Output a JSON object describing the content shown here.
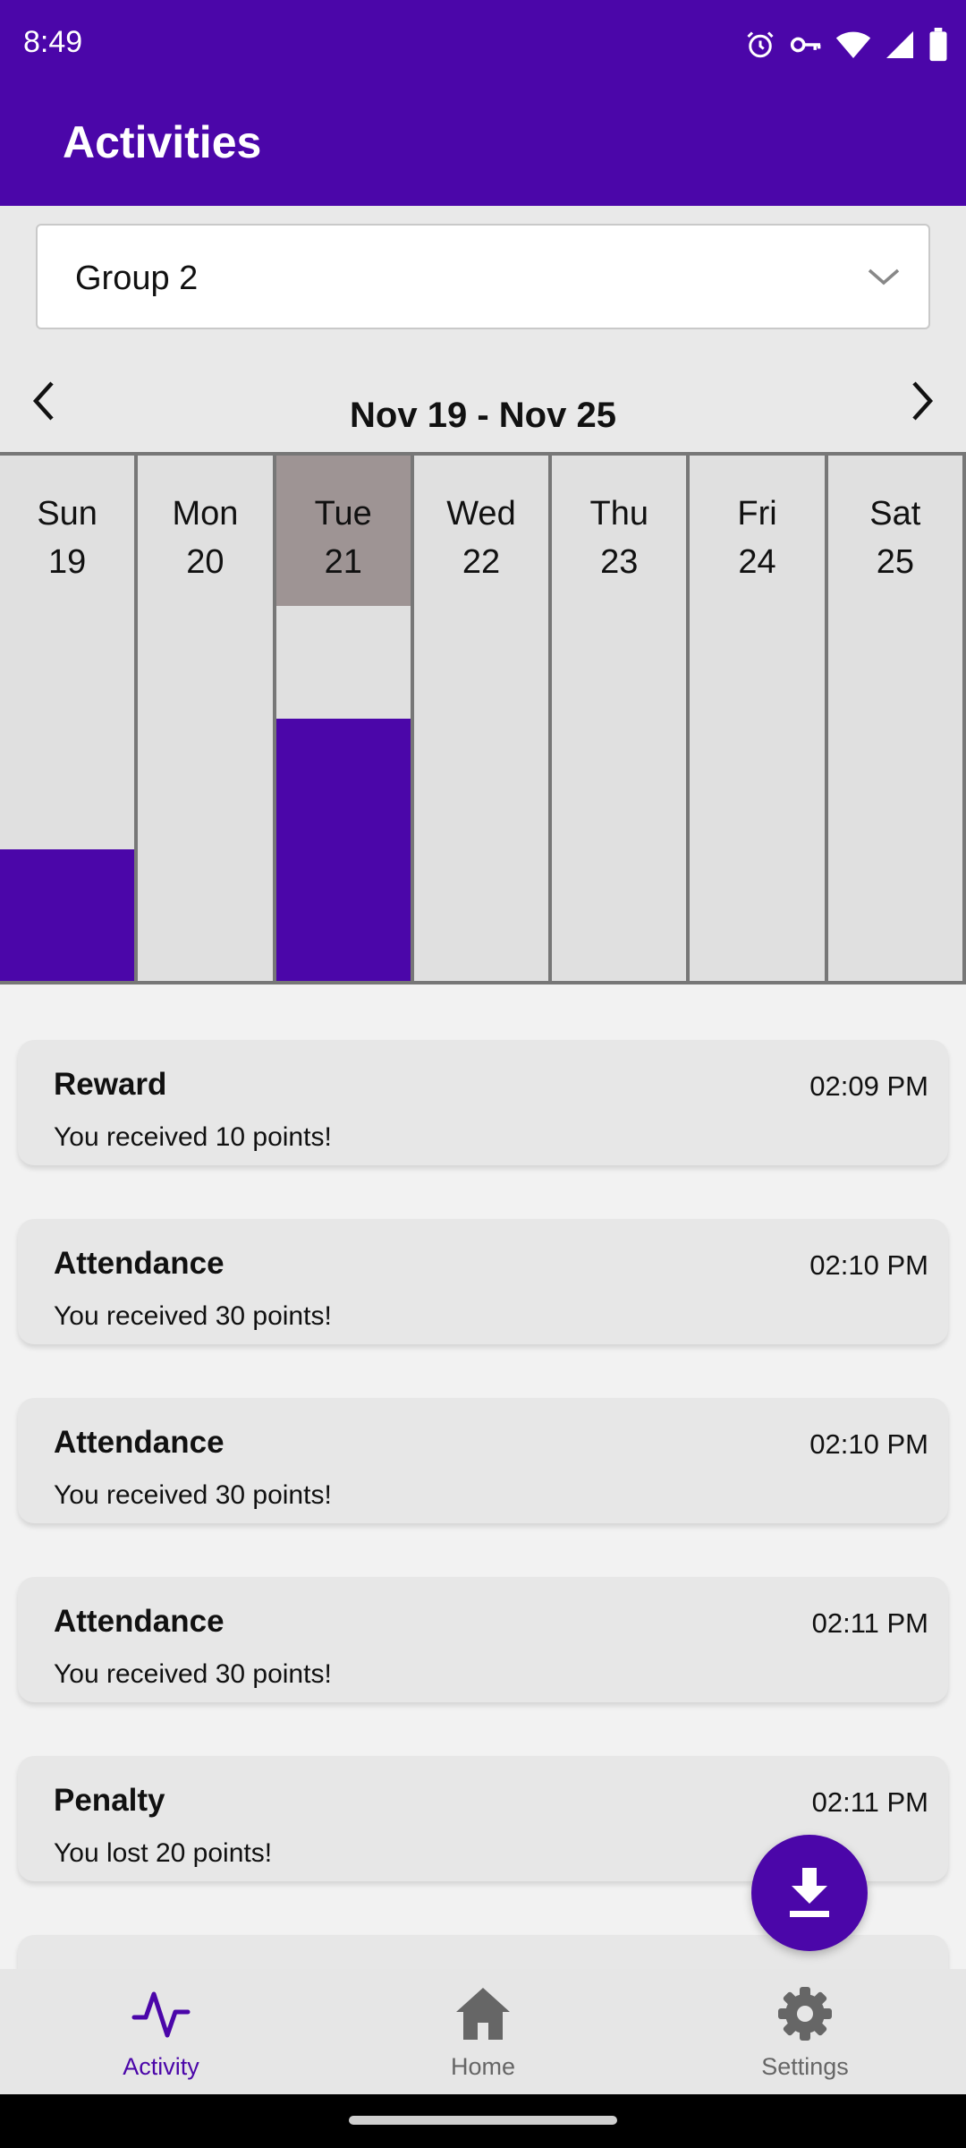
{
  "status_bar": {
    "time": "8:49",
    "icons": [
      "alarm-icon",
      "vpn-key-icon",
      "wifi-icon",
      "signal-icon",
      "battery-icon"
    ]
  },
  "header": {
    "title": "Activities"
  },
  "group_select": {
    "value": "Group 2"
  },
  "week_nav": {
    "range_label": "Nov 19 - Nov 25"
  },
  "week_days": [
    {
      "name": "Sun",
      "date": "19",
      "selected": false,
      "level": 0.25
    },
    {
      "name": "Mon",
      "date": "20",
      "selected": false,
      "level": 0
    },
    {
      "name": "Tue",
      "date": "21",
      "selected": true,
      "level": 0.5
    },
    {
      "name": "Wed",
      "date": "22",
      "selected": false,
      "level": 0
    },
    {
      "name": "Thu",
      "date": "23",
      "selected": false,
      "level": 0
    },
    {
      "name": "Fri",
      "date": "24",
      "selected": false,
      "level": 0
    },
    {
      "name": "Sat",
      "date": "25",
      "selected": false,
      "level": 0
    }
  ],
  "activities": [
    {
      "title": "Reward",
      "time": "02:09 PM",
      "message": "You received 10 points!"
    },
    {
      "title": "Attendance",
      "time": "02:10 PM",
      "message": "You received 30 points!"
    },
    {
      "title": "Attendance",
      "time": "02:10 PM",
      "message": "You received 30 points!"
    },
    {
      "title": "Attendance",
      "time": "02:11 PM",
      "message": "You received 30 points!"
    },
    {
      "title": "Penalty",
      "time": "02:11 PM",
      "message": "You lost 20 points!"
    }
  ],
  "fab": {
    "icon": "download-icon"
  },
  "bottom_nav": {
    "items": [
      {
        "label": "Activity",
        "icon": "activity-icon",
        "active": true
      },
      {
        "label": "Home",
        "icon": "home-icon",
        "active": false
      },
      {
        "label": "Settings",
        "icon": "gear-icon",
        "active": false
      }
    ]
  },
  "colors": {
    "primary": "#4b06a9",
    "selected_day": "#9e9494"
  }
}
